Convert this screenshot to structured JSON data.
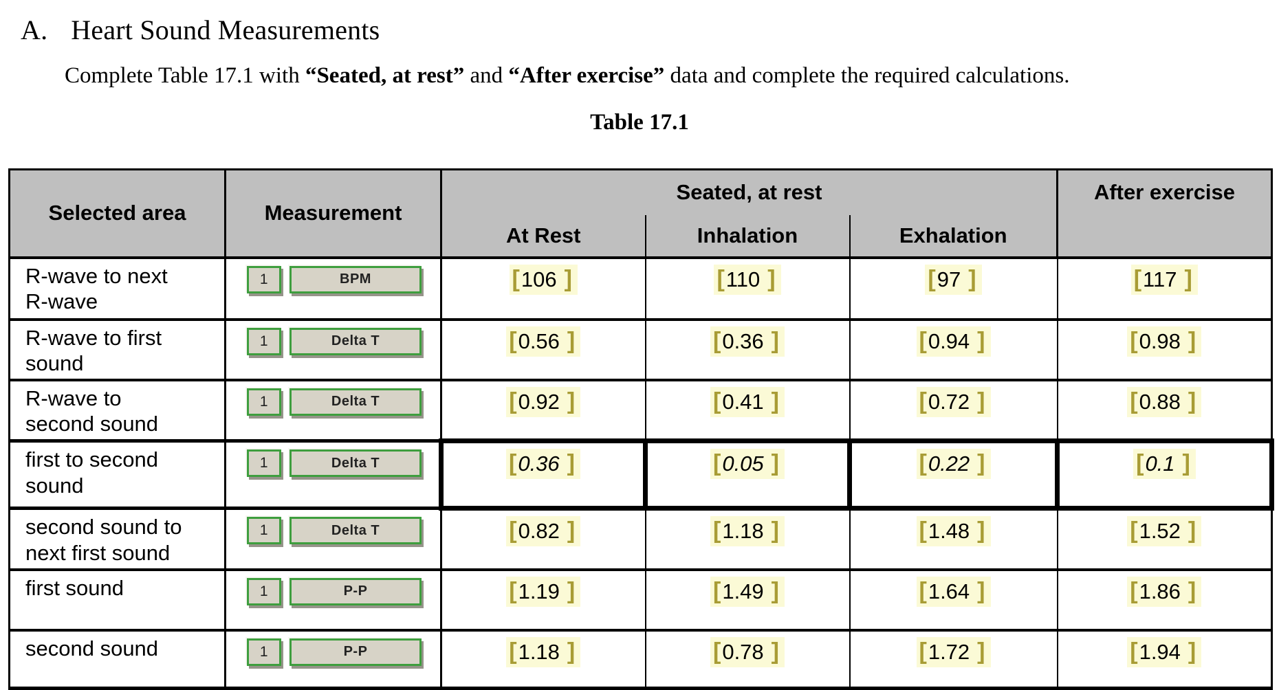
{
  "document": {
    "section_label": "A.",
    "section_title": "Heart Sound Measurements",
    "instruction": {
      "part1": "Complete Table 17.1 with ",
      "bold1": "“Seated, at rest”",
      "part2": " and ",
      "bold2": "“After exercise”",
      "part3": " data and complete the required calculations."
    },
    "table_caption": "Table 17.1"
  },
  "table": {
    "columns": {
      "selected_area": "Selected area",
      "measurement": "Measurement",
      "seated_group": "Seated, at rest",
      "after_exercise": "After exercise",
      "subcolumns": [
        "At Rest",
        "Inhalation",
        "Exhalation"
      ]
    },
    "bracket_open": "[",
    "bracket_close": "]",
    "rows": [
      {
        "area": "R-wave to next\nR-wave",
        "channel": "1",
        "measurement": "BPM",
        "values": [
          "106",
          "110",
          "97",
          "117"
        ],
        "emphasized": false
      },
      {
        "area": "R-wave to first\nsound",
        "channel": "1",
        "measurement": "Delta T",
        "values": [
          "0.56",
          "0.36",
          "0.94",
          "0.98"
        ],
        "emphasized": false
      },
      {
        "area": "R-wave to\nsecond sound",
        "channel": "1",
        "measurement": "Delta T",
        "values": [
          "0.92",
          "0.41",
          "0.72",
          "0.88"
        ],
        "emphasized": false
      },
      {
        "area": "first to second\nsound",
        "channel": "1",
        "measurement": "Delta T",
        "values": [
          "0.36",
          "0.05",
          "0.22",
          "0.1"
        ],
        "emphasized": true
      },
      {
        "area": "second sound to\nnext first sound",
        "channel": "1",
        "measurement": "Delta T",
        "values": [
          "0.82",
          "1.18",
          "1.48",
          "1.52"
        ],
        "emphasized": false
      },
      {
        "area": "first sound",
        "channel": "1",
        "measurement": "P-P",
        "values": [
          "1.19",
          "1.49",
          "1.64",
          "1.86"
        ],
        "emphasized": false
      },
      {
        "area": "second sound",
        "channel": "1",
        "measurement": "P-P",
        "values": [
          "1.18",
          "0.78",
          "1.72",
          "1.94"
        ],
        "emphasized": false
      }
    ]
  },
  "colors": {
    "header_bg": "#bfbfbf",
    "highlight_bg": "#fbfad6",
    "bracket": "#a89c35",
    "widget_green": "#3e9e3e",
    "widget_bg": "#d7d3c7"
  }
}
